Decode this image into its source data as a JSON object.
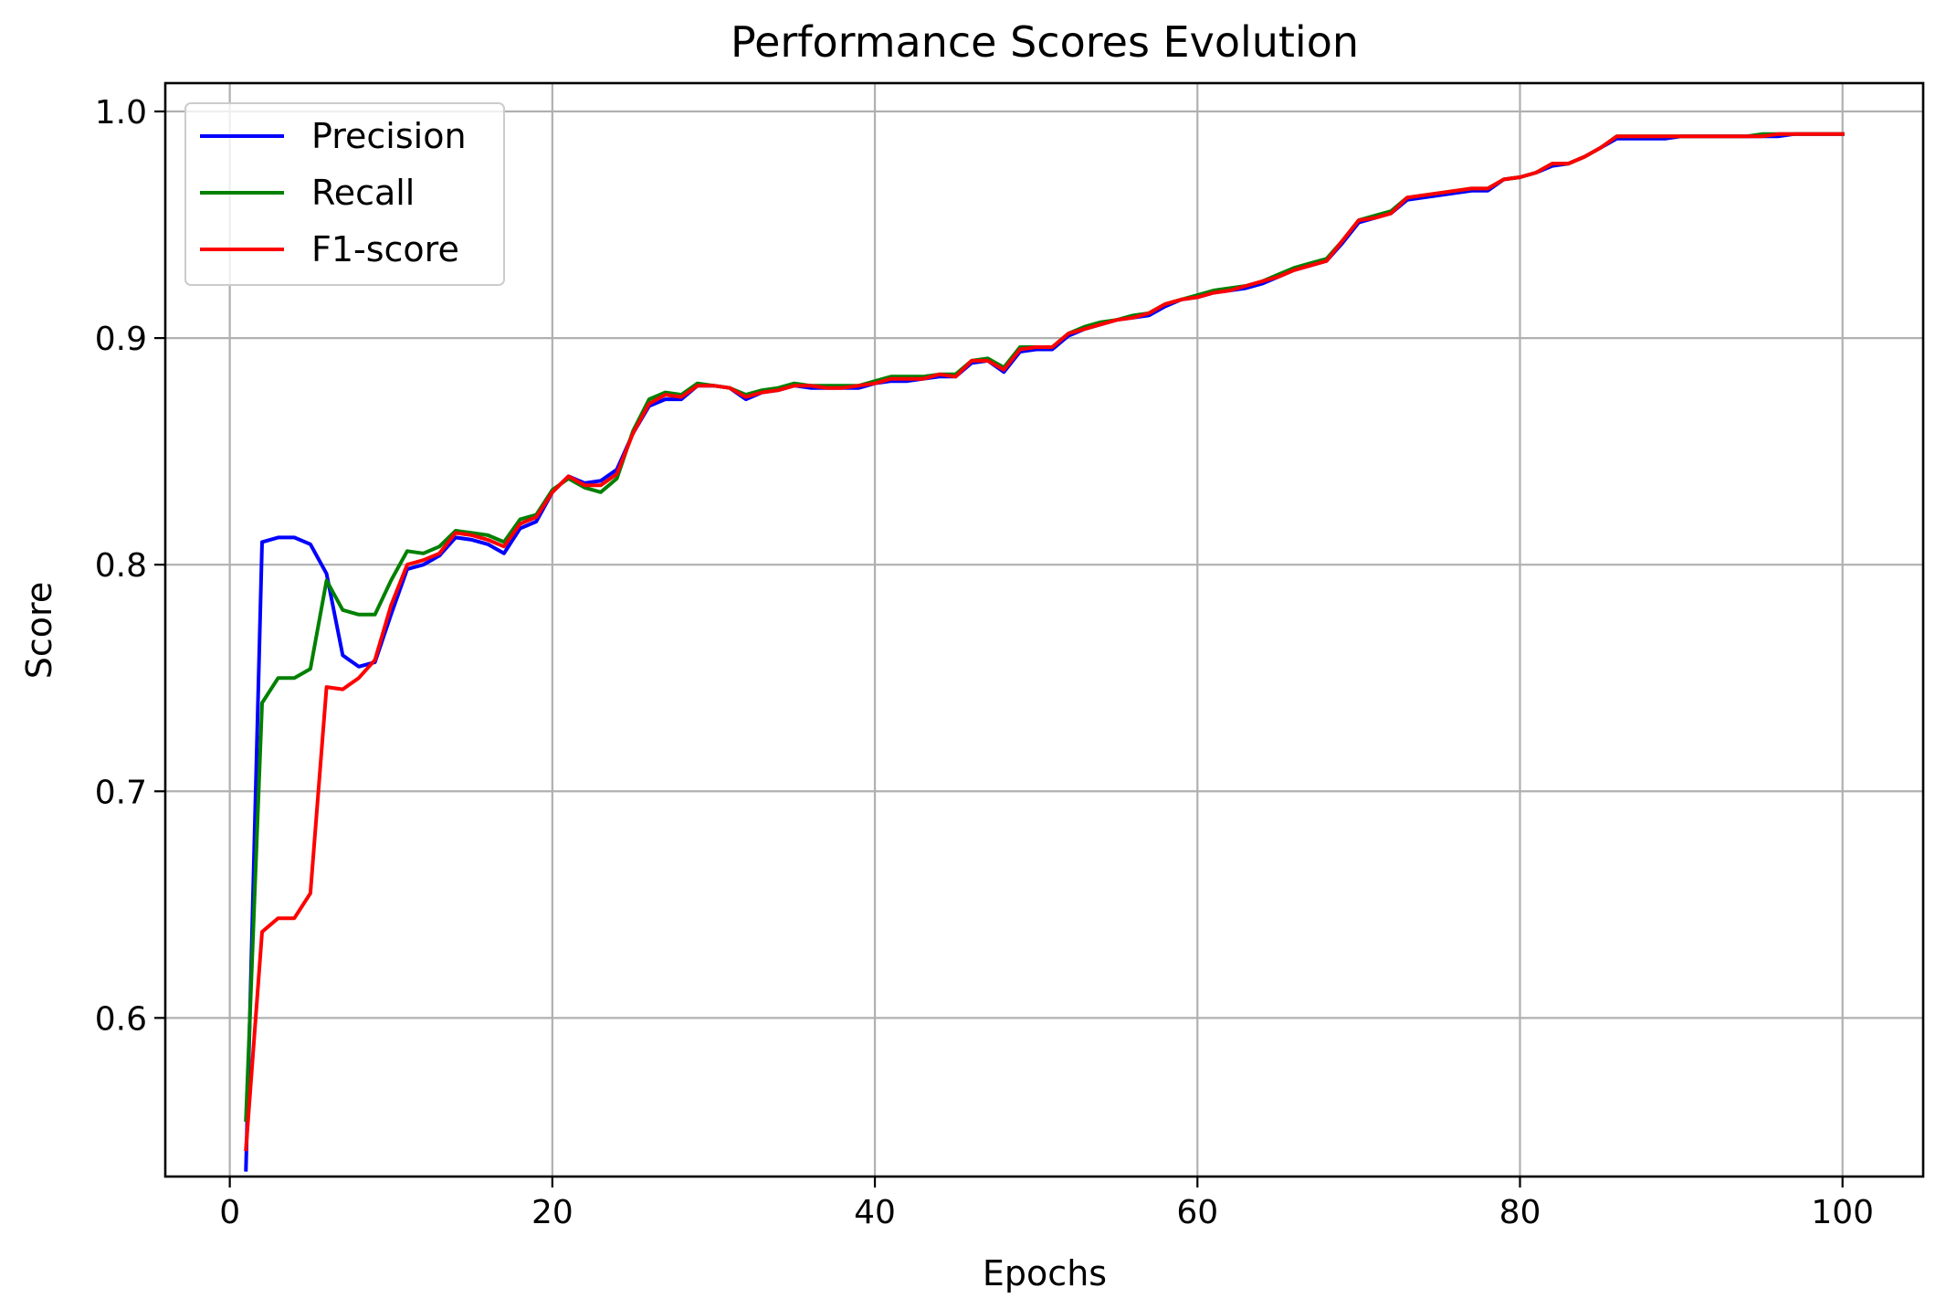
{
  "chart_data": {
    "type": "line",
    "title": "Performance Scores Evolution",
    "xlabel": "Epochs",
    "ylabel": "Score",
    "xlim": [
      -4,
      105
    ],
    "ylim": [
      0.53,
      1.0125
    ],
    "xticks": [
      0,
      20,
      40,
      60,
      80,
      100
    ],
    "yticks": [
      0.6,
      0.7,
      0.8,
      0.9,
      1.0
    ],
    "xtick_labels": [
      "0",
      "20",
      "40",
      "60",
      "80",
      "100"
    ],
    "ytick_labels": [
      "0.6",
      "0.7",
      "0.8",
      "0.9",
      "1.0"
    ],
    "grid": true,
    "legend_position": "top-left",
    "x": [
      1,
      2,
      3,
      4,
      5,
      6,
      7,
      8,
      9,
      10,
      11,
      12,
      13,
      14,
      15,
      16,
      17,
      18,
      19,
      20,
      21,
      22,
      23,
      24,
      25,
      26,
      27,
      28,
      29,
      30,
      31,
      32,
      33,
      34,
      35,
      36,
      37,
      38,
      39,
      40,
      41,
      42,
      43,
      44,
      45,
      46,
      47,
      48,
      49,
      50,
      51,
      52,
      53,
      54,
      55,
      56,
      57,
      58,
      59,
      60,
      61,
      62,
      63,
      64,
      65,
      66,
      67,
      68,
      69,
      70,
      71,
      72,
      73,
      74,
      75,
      76,
      77,
      78,
      79,
      80,
      81,
      82,
      83,
      84,
      85,
      86,
      87,
      88,
      89,
      90,
      91,
      92,
      93,
      94,
      95,
      96,
      97,
      98,
      99,
      100
    ],
    "series": [
      {
        "name": "Precision",
        "color": "#0000ff",
        "values": [
          0.533,
          0.81,
          0.812,
          0.812,
          0.809,
          0.796,
          0.76,
          0.755,
          0.757,
          0.778,
          0.798,
          0.8,
          0.804,
          0.812,
          0.811,
          0.809,
          0.805,
          0.816,
          0.819,
          0.832,
          0.839,
          0.836,
          0.837,
          0.842,
          0.858,
          0.87,
          0.873,
          0.873,
          0.879,
          0.879,
          0.878,
          0.873,
          0.876,
          0.877,
          0.879,
          0.878,
          0.878,
          0.878,
          0.878,
          0.88,
          0.881,
          0.881,
          0.882,
          0.883,
          0.883,
          0.889,
          0.89,
          0.885,
          0.894,
          0.895,
          0.895,
          0.901,
          0.904,
          0.906,
          0.908,
          0.909,
          0.91,
          0.914,
          0.917,
          0.918,
          0.92,
          0.921,
          0.922,
          0.924,
          0.927,
          0.93,
          0.932,
          0.934,
          0.942,
          0.951,
          0.953,
          0.955,
          0.961,
          0.962,
          0.963,
          0.964,
          0.965,
          0.965,
          0.97,
          0.971,
          0.973,
          0.976,
          0.977,
          0.98,
          0.984,
          0.988,
          0.988,
          0.988,
          0.988,
          0.989,
          0.989,
          0.989,
          0.989,
          0.989,
          0.989,
          0.989,
          0.99,
          0.99,
          0.99,
          0.99
        ]
      },
      {
        "name": "Recall",
        "color": "#008000",
        "values": [
          0.555,
          0.739,
          0.75,
          0.75,
          0.754,
          0.793,
          0.78,
          0.778,
          0.778,
          0.793,
          0.806,
          0.805,
          0.808,
          0.815,
          0.814,
          0.813,
          0.81,
          0.82,
          0.822,
          0.833,
          0.838,
          0.834,
          0.832,
          0.838,
          0.859,
          0.873,
          0.876,
          0.875,
          0.88,
          0.879,
          0.878,
          0.875,
          0.877,
          0.878,
          0.88,
          0.879,
          0.879,
          0.879,
          0.879,
          0.881,
          0.883,
          0.883,
          0.883,
          0.884,
          0.884,
          0.89,
          0.891,
          0.887,
          0.896,
          0.896,
          0.896,
          0.902,
          0.905,
          0.907,
          0.908,
          0.91,
          0.911,
          0.915,
          0.917,
          0.919,
          0.921,
          0.922,
          0.923,
          0.925,
          0.928,
          0.931,
          0.933,
          0.935,
          0.943,
          0.952,
          0.954,
          0.956,
          0.962,
          0.963,
          0.964,
          0.965,
          0.966,
          0.966,
          0.97,
          0.971,
          0.973,
          0.977,
          0.977,
          0.98,
          0.984,
          0.989,
          0.989,
          0.989,
          0.989,
          0.989,
          0.989,
          0.989,
          0.989,
          0.989,
          0.99,
          0.99,
          0.99,
          0.99,
          0.99,
          0.99
        ]
      },
      {
        "name": "F1-score",
        "color": "#ff0000",
        "values": [
          0.542,
          0.638,
          0.644,
          0.644,
          0.655,
          0.746,
          0.745,
          0.75,
          0.758,
          0.782,
          0.8,
          0.802,
          0.805,
          0.814,
          0.813,
          0.811,
          0.808,
          0.818,
          0.821,
          0.832,
          0.839,
          0.835,
          0.835,
          0.84,
          0.858,
          0.871,
          0.875,
          0.874,
          0.879,
          0.879,
          0.878,
          0.874,
          0.876,
          0.877,
          0.879,
          0.879,
          0.878,
          0.878,
          0.879,
          0.88,
          0.882,
          0.882,
          0.882,
          0.884,
          0.883,
          0.89,
          0.89,
          0.886,
          0.895,
          0.896,
          0.896,
          0.902,
          0.904,
          0.906,
          0.908,
          0.909,
          0.911,
          0.915,
          0.917,
          0.918,
          0.92,
          0.921,
          0.923,
          0.925,
          0.927,
          0.93,
          0.932,
          0.934,
          0.943,
          0.952,
          0.953,
          0.955,
          0.962,
          0.963,
          0.964,
          0.965,
          0.966,
          0.966,
          0.97,
          0.971,
          0.973,
          0.977,
          0.977,
          0.98,
          0.984,
          0.989,
          0.989,
          0.989,
          0.989,
          0.989,
          0.989,
          0.989,
          0.989,
          0.989,
          0.989,
          0.99,
          0.99,
          0.99,
          0.99,
          0.99
        ]
      }
    ]
  }
}
